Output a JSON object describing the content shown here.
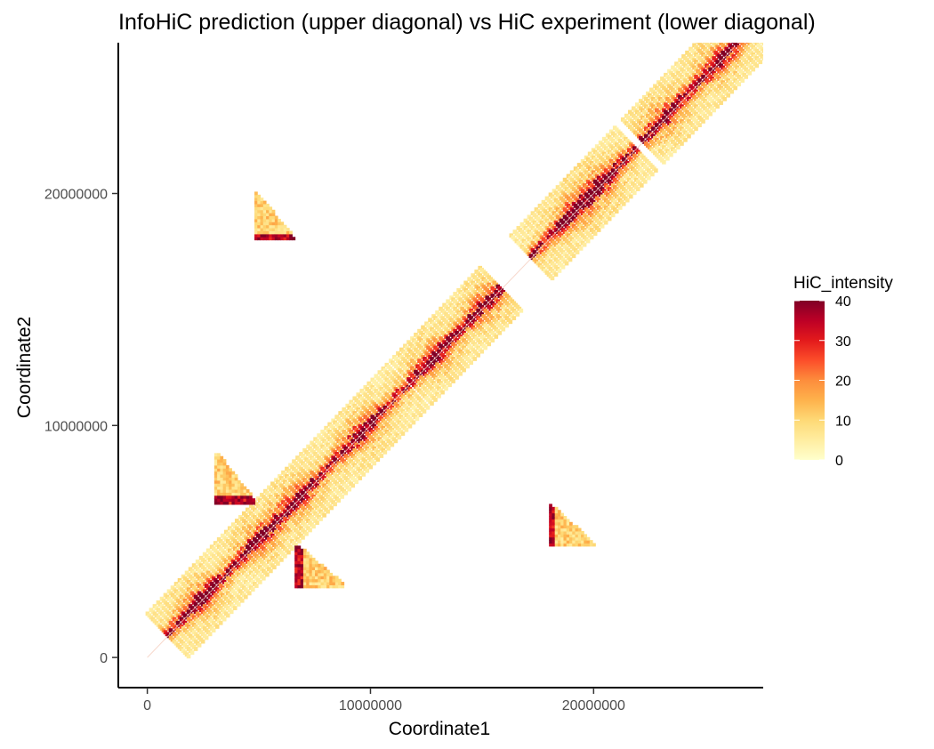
{
  "chart_data": {
    "type": "heatmap",
    "title": "InfoHiC prediction (upper diagonal) vs HiC experiment (lower diagonal)",
    "xlabel": "Coordinate1",
    "ylabel": "Coordinate2",
    "xlim": [
      -1300000,
      27600000
    ],
    "ylim": [
      -1300000,
      26500000
    ],
    "x_ticks": [
      0,
      10000000,
      20000000
    ],
    "x_tick_labels": [
      "0",
      "10000000",
      "20000000"
    ],
    "y_ticks": [
      0,
      10000000,
      20000000
    ],
    "y_tick_labels": [
      "0",
      "10000000",
      "20000000"
    ],
    "grid": false,
    "legend": {
      "title": "HiC_intensity",
      "position": "right",
      "min": 0,
      "max": 40,
      "ticks": [
        0,
        10,
        20,
        30,
        40
      ],
      "colors": [
        "#ffffcc",
        "#ffeda0",
        "#fed976",
        "#feb24c",
        "#fd8d3c",
        "#fc4e2a",
        "#e31a1c",
        "#bd0026",
        "#800026"
      ]
    },
    "diagonal_blocks": [
      {
        "start": 0,
        "end": 10800000,
        "width": 1900000
      },
      {
        "start": 10900000,
        "end": 15000000,
        "width": 1900000
      },
      {
        "start": 16300000,
        "end": 21100000,
        "width": 1900000
      },
      {
        "start": 21300000,
        "end": 26300000,
        "width": 1900000
      }
    ],
    "offdiag_blocks": [
      {
        "x0": 4800000,
        "x1": 6500000,
        "y0": 18000000,
        "y1": 20000000,
        "side": "upper"
      },
      {
        "x0": 3000000,
        "x1": 4800000,
        "y0": 6600000,
        "y1": 8800000,
        "side": "upper"
      },
      {
        "x0": 6600000,
        "x1": 8800000,
        "y0": 3000000,
        "y1": 4800000,
        "side": "lower"
      },
      {
        "x0": 18000000,
        "x1": 20000000,
        "y0": 4800000,
        "y1": 6500000,
        "side": "lower"
      }
    ]
  }
}
